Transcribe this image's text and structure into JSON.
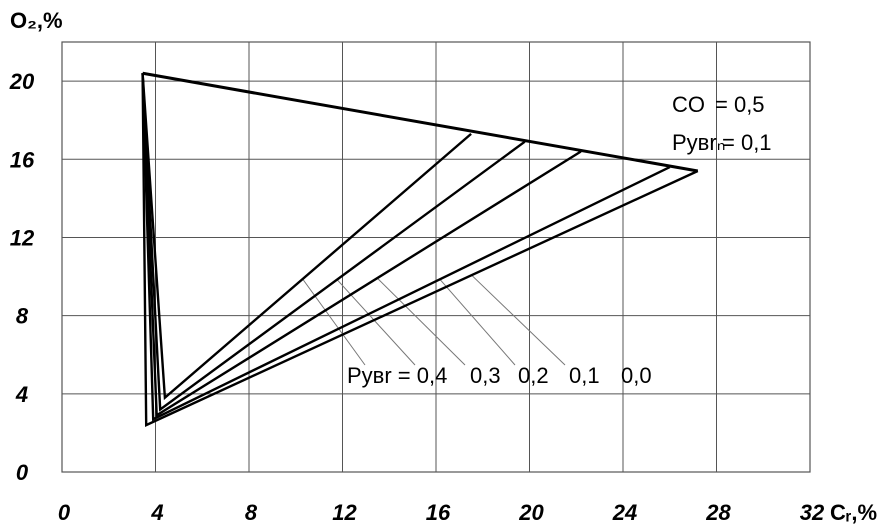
{
  "chart_data": {
    "type": "line",
    "title": "",
    "ylabel": "O₂,%",
    "xlabel": "Cᵣ,%",
    "xlim": [
      0,
      32
    ],
    "ylim": [
      0,
      22
    ],
    "grid": true,
    "x_ticks": [
      {
        "value": 0,
        "label": "0"
      },
      {
        "value": 4,
        "label": "4"
      },
      {
        "value": 8,
        "label": "8"
      },
      {
        "value": 12,
        "label": "12"
      },
      {
        "value": 16,
        "label": "16"
      },
      {
        "value": 20,
        "label": "20"
      },
      {
        "value": 24,
        "label": "24"
      },
      {
        "value": 28,
        "label": "28"
      },
      {
        "value": 32,
        "label": "32"
      }
    ],
    "y_ticks": [
      {
        "value": 0,
        "label": "0"
      },
      {
        "value": 4,
        "label": "4"
      },
      {
        "value": 8,
        "label": "8"
      },
      {
        "value": 12,
        "label": "12"
      },
      {
        "value": 16,
        "label": "16"
      },
      {
        "value": 20,
        "label": "20"
      }
    ],
    "outer_line": {
      "x": [
        3.45,
        27.2
      ],
      "y": [
        20.4,
        15.4
      ]
    },
    "series": [
      {
        "label_value": "0,4",
        "apex": [
          3.45,
          20.4
        ],
        "base": [
          4.4,
          3.8
        ],
        "end": [
          17.5,
          17.3
        ]
      },
      {
        "label_value": "0,3",
        "apex": [
          3.45,
          20.4
        ],
        "base": [
          4.2,
          3.2
        ],
        "end": [
          19.8,
          16.9
        ]
      },
      {
        "label_value": "0,2",
        "apex": [
          3.45,
          20.4
        ],
        "base": [
          4.05,
          2.9
        ],
        "end": [
          22.2,
          16.4
        ]
      },
      {
        "label_value": "0,1",
        "apex": [
          3.45,
          20.4
        ],
        "base": [
          3.9,
          2.7
        ],
        "end": [
          26.0,
          15.6
        ]
      },
      {
        "label_value": "0,0",
        "apex": [
          3.45,
          20.4
        ],
        "base": [
          3.6,
          2.4
        ],
        "end": [
          27.2,
          15.4
        ]
      }
    ],
    "annotations": {
      "co_label": "CO",
      "co_value": "= 0,5",
      "pybr_label": "Pyвrₙ",
      "pybr_value": "= 0,1",
      "bottom_prefix": "Pyвr = 0,4",
      "bottom_values": [
        "0,3",
        "0,2",
        "0,1",
        "0,0"
      ]
    },
    "colors": {
      "line": "#000000",
      "grid": "#555555",
      "leader": "#777777"
    }
  }
}
